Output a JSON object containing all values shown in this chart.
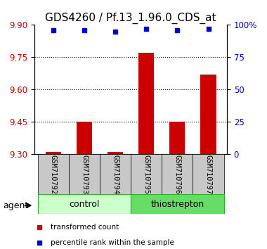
{
  "title": "GDS4260 / Pf.13_1.96.0_CDS_at",
  "samples": [
    "GSM710792",
    "GSM710793",
    "GSM710794",
    "GSM710795",
    "GSM710796",
    "GSM710797"
  ],
  "groups": [
    "control",
    "control",
    "control",
    "thiostrepton",
    "thiostrepton",
    "thiostrepton"
  ],
  "transformed_counts": [
    9.31,
    9.45,
    9.31,
    9.77,
    9.45,
    9.67
  ],
  "percentile_ranks": [
    96,
    96,
    95,
    97,
    96,
    97
  ],
  "ylim_left": [
    9.3,
    9.9
  ],
  "yticks_left": [
    9.3,
    9.45,
    9.6,
    9.75,
    9.9
  ],
  "yticks_right": [
    0,
    25,
    50,
    75,
    100
  ],
  "ylim_right": [
    0,
    100
  ],
  "bar_color": "#cc0000",
  "dot_color": "#0000cc",
  "ylabel_left_color": "#cc0000",
  "ylabel_right_color": "#0000cc",
  "title_fontsize": 11,
  "tick_fontsize": 8.5,
  "sample_fontsize": 7.5,
  "legend_fontsize": 7.5,
  "group_label_fontsize": 9
}
